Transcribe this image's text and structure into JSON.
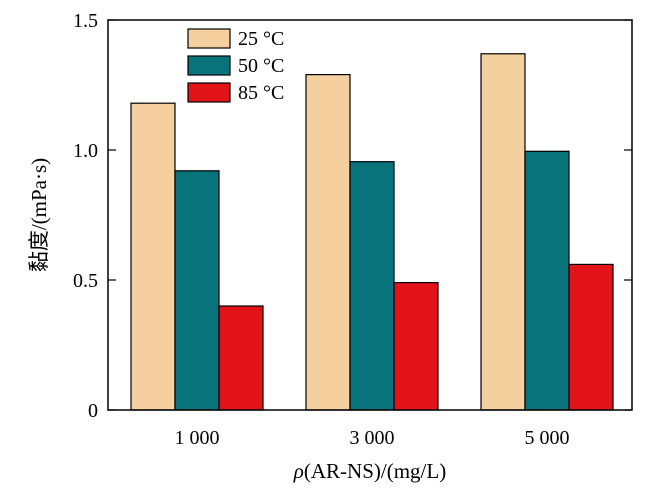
{
  "chart_data": {
    "type": "bar",
    "categories": [
      "1 000",
      "3 000",
      "5 000"
    ],
    "series": [
      {
        "name": "25 °C",
        "values": [
          1.18,
          1.29,
          1.37
        ],
        "color": "#f6cf9f"
      },
      {
        "name": "50 °C",
        "values": [
          0.92,
          0.955,
          0.995
        ],
        "color": "#08737b"
      },
      {
        "name": "85 °C",
        "values": [
          0.4,
          0.49,
          0.56
        ],
        "color": "#e3131a"
      }
    ],
    "xlabel_italic": "ρ",
    "xlabel_rest": "(AR-NS)/(mg/L)",
    "ylabel": "黏度/(mPa·s)",
    "ylim": [
      0,
      1.5
    ],
    "yticks": [
      {
        "value": 0,
        "label": "0"
      },
      {
        "value": 0.5,
        "label": "0.5"
      },
      {
        "value": 1.0,
        "label": "1.0"
      },
      {
        "value": 1.5,
        "label": "1.5"
      }
    ],
    "grid": false,
    "legend_position": "top-left"
  }
}
